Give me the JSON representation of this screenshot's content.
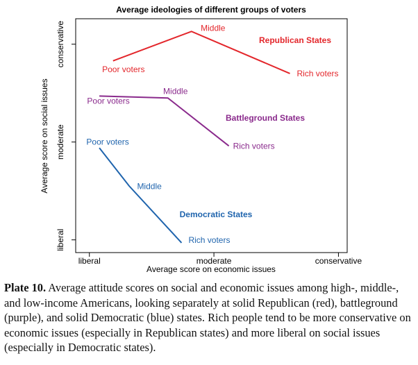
{
  "chart_data": {
    "type": "line",
    "title": "Average ideologies of different groups of voters",
    "xlabel": "Average score on economic issues",
    "ylabel": "Average score on social issues",
    "xlim": [
      -1.11,
      1.07
    ],
    "ylim": [
      -1.13,
      1.26
    ],
    "xticks": [
      {
        "value": -1,
        "label": "liberal"
      },
      {
        "value": 0,
        "label": "moderate"
      },
      {
        "value": 1,
        "label": "conservative"
      }
    ],
    "yticks": [
      {
        "value": -1,
        "label": "liberal"
      },
      {
        "value": 0,
        "label": "moderate"
      },
      {
        "value": 1,
        "label": "conservative"
      }
    ],
    "point_labels": [
      "Poor voters",
      "Middle",
      "Rich voters"
    ],
    "series": [
      {
        "name": "Republican States",
        "color": "#e3262b",
        "x": [
          -0.81,
          -0.18,
          0.61
        ],
        "values": [
          0.83,
          1.13,
          0.7
        ]
      },
      {
        "name": "Battleground States",
        "color": "#8a2a8c",
        "x": [
          -0.92,
          -0.37,
          0.12
        ],
        "values": [
          0.47,
          0.45,
          -0.04
        ]
      },
      {
        "name": "Democratic States",
        "color": "#1f64ad",
        "x": [
          -0.92,
          -0.68,
          -0.26
        ],
        "values": [
          -0.06,
          -0.45,
          -1.03
        ]
      }
    ]
  },
  "caption": {
    "label": "Plate 10.",
    "text": "Average attitude scores on social and economic issues among high-, middle-, and low-income Americans, looking separately at solid Republican (red), battleground (purple), and solid Democratic (blue) states. Rich people tend to be more conservative on economic issues (especially in Republican states) and more liberal on social issues (especially in Democratic states)."
  }
}
